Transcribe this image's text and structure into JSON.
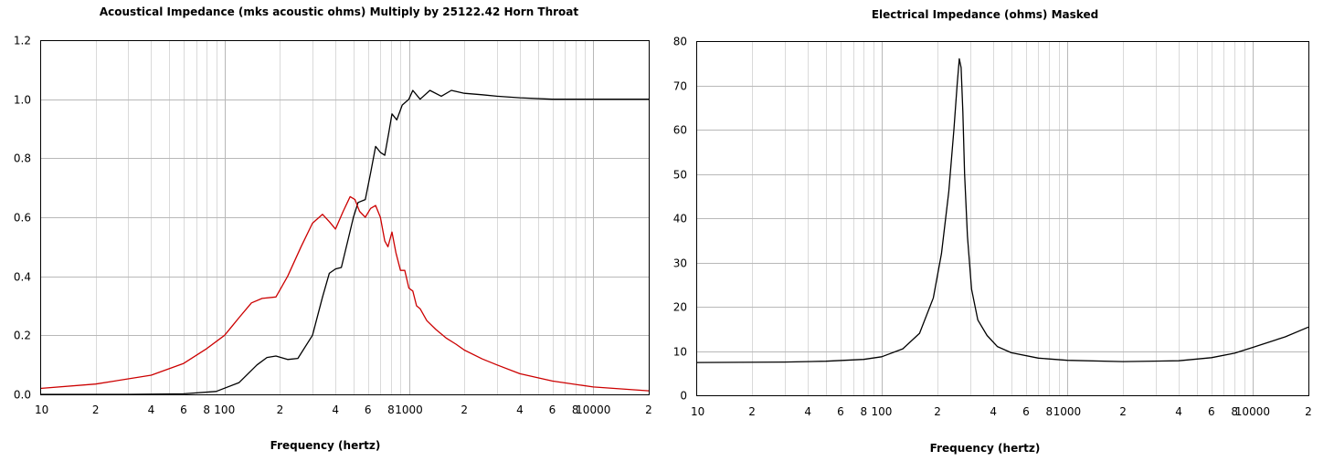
{
  "chart_data": [
    {
      "type": "line",
      "title": "Acoustical Impedance (mks acoustic ohms)   Multiply by 25122.42   Horn Throat",
      "xlabel": "Frequency (hertz)",
      "ylabel": "",
      "x_scale": "log",
      "xlim": [
        10,
        20000
      ],
      "ylim": [
        0,
        1.2
      ],
      "grid": true,
      "legend": "none",
      "x_ticks": [
        {
          "value": 10,
          "label": "10"
        },
        {
          "value": 20,
          "label": "2"
        },
        {
          "value": 40,
          "label": "4"
        },
        {
          "value": 60,
          "label": "6"
        },
        {
          "value": 80,
          "label": "8"
        },
        {
          "value": 100,
          "label": "100"
        },
        {
          "value": 200,
          "label": "2"
        },
        {
          "value": 400,
          "label": "4"
        },
        {
          "value": 600,
          "label": "6"
        },
        {
          "value": 800,
          "label": "8"
        },
        {
          "value": 1000,
          "label": "1000"
        },
        {
          "value": 2000,
          "label": "2"
        },
        {
          "value": 4000,
          "label": "4"
        },
        {
          "value": 6000,
          "label": "6"
        },
        {
          "value": 8000,
          "label": "8"
        },
        {
          "value": 10000,
          "label": "10000"
        },
        {
          "value": 20000,
          "label": "2"
        }
      ],
      "y_ticks": [
        {
          "value": 0,
          "label": "0.0"
        },
        {
          "value": 0.2,
          "label": "0.2"
        },
        {
          "value": 0.4,
          "label": "0.4"
        },
        {
          "value": 0.6,
          "label": "0.6"
        },
        {
          "value": 0.8,
          "label": "0.8"
        },
        {
          "value": 1.0,
          "label": "1.0"
        },
        {
          "value": 1.2,
          "label": "1.2"
        }
      ],
      "series": [
        {
          "color": "#000000",
          "x": [
            10,
            30,
            60,
            90,
            120,
            150,
            170,
            190,
            220,
            250,
            300,
            340,
            370,
            400,
            430,
            470,
            500,
            530,
            580,
            620,
            660,
            700,
            740,
            780,
            810,
            860,
            920,
            1000,
            1050,
            1150,
            1300,
            1500,
            1700,
            2000,
            2500,
            3000,
            4000,
            6000,
            10000,
            20000
          ],
          "y": [
            0.0,
            0.0,
            0.002,
            0.01,
            0.04,
            0.1,
            0.125,
            0.13,
            0.118,
            0.122,
            0.2,
            0.33,
            0.41,
            0.425,
            0.43,
            0.53,
            0.6,
            0.65,
            0.66,
            0.75,
            0.84,
            0.82,
            0.81,
            0.89,
            0.95,
            0.93,
            0.98,
            1.0,
            1.03,
            1.0,
            1.03,
            1.01,
            1.03,
            1.02,
            1.015,
            1.01,
            1.005,
            1.0,
            1.0,
            1.0
          ]
        },
        {
          "color": "#cc0000",
          "x": [
            10,
            20,
            40,
            60,
            80,
            100,
            120,
            140,
            160,
            190,
            220,
            260,
            300,
            340,
            370,
            400,
            440,
            480,
            510,
            540,
            580,
            620,
            660,
            700,
            740,
            770,
            810,
            850,
            900,
            950,
            1000,
            1050,
            1100,
            1150,
            1250,
            1400,
            1600,
            1800,
            2000,
            2500,
            3000,
            4000,
            6000,
            10000,
            20000
          ],
          "y": [
            0.02,
            0.035,
            0.065,
            0.105,
            0.155,
            0.2,
            0.26,
            0.31,
            0.325,
            0.33,
            0.4,
            0.5,
            0.58,
            0.61,
            0.585,
            0.56,
            0.62,
            0.67,
            0.66,
            0.62,
            0.6,
            0.63,
            0.64,
            0.6,
            0.52,
            0.5,
            0.55,
            0.48,
            0.42,
            0.42,
            0.36,
            0.35,
            0.3,
            0.29,
            0.25,
            0.22,
            0.19,
            0.17,
            0.15,
            0.12,
            0.1,
            0.07,
            0.045,
            0.025,
            0.012
          ]
        }
      ]
    },
    {
      "type": "line",
      "title": "Electrical Impedance (ohms)   Masked",
      "xlabel": "Frequency (hertz)",
      "ylabel": "",
      "x_scale": "log",
      "xlim": [
        10,
        20000
      ],
      "ylim": [
        0,
        80
      ],
      "grid": true,
      "legend": "none",
      "x_ticks": [
        {
          "value": 10,
          "label": "10"
        },
        {
          "value": 20,
          "label": "2"
        },
        {
          "value": 40,
          "label": "4"
        },
        {
          "value": 60,
          "label": "6"
        },
        {
          "value": 80,
          "label": "8"
        },
        {
          "value": 100,
          "label": "100"
        },
        {
          "value": 200,
          "label": "2"
        },
        {
          "value": 400,
          "label": "4"
        },
        {
          "value": 600,
          "label": "6"
        },
        {
          "value": 800,
          "label": "8"
        },
        {
          "value": 1000,
          "label": "1000"
        },
        {
          "value": 2000,
          "label": "2"
        },
        {
          "value": 4000,
          "label": "4"
        },
        {
          "value": 6000,
          "label": "6"
        },
        {
          "value": 8000,
          "label": "8"
        },
        {
          "value": 10000,
          "label": "10000"
        },
        {
          "value": 20000,
          "label": "2"
        }
      ],
      "y_ticks": [
        {
          "value": 0,
          "label": "0"
        },
        {
          "value": 10,
          "label": "10"
        },
        {
          "value": 20,
          "label": "20"
        },
        {
          "value": 30,
          "label": "30"
        },
        {
          "value": 40,
          "label": "40"
        },
        {
          "value": 50,
          "label": "50"
        },
        {
          "value": 60,
          "label": "60"
        },
        {
          "value": 70,
          "label": "70"
        },
        {
          "value": 80,
          "label": "80"
        }
      ],
      "series": [
        {
          "color": "#000000",
          "x": [
            10,
            30,
            50,
            80,
            100,
            130,
            160,
            190,
            210,
            230,
            245,
            255,
            262,
            268,
            274,
            280,
            290,
            305,
            330,
            370,
            420,
            500,
            700,
            1000,
            2000,
            4000,
            6000,
            8000,
            10000,
            15000,
            20000
          ],
          "y": [
            7.4,
            7.5,
            7.7,
            8.1,
            8.7,
            10.5,
            14.0,
            22.0,
            32.0,
            46.0,
            60.0,
            70.0,
            76.0,
            74.0,
            64.0,
            50.0,
            36.0,
            24.0,
            17.0,
            13.5,
            11.0,
            9.6,
            8.4,
            7.9,
            7.6,
            7.8,
            8.5,
            9.5,
            10.8,
            13.2,
            15.4
          ]
        }
      ]
    }
  ]
}
